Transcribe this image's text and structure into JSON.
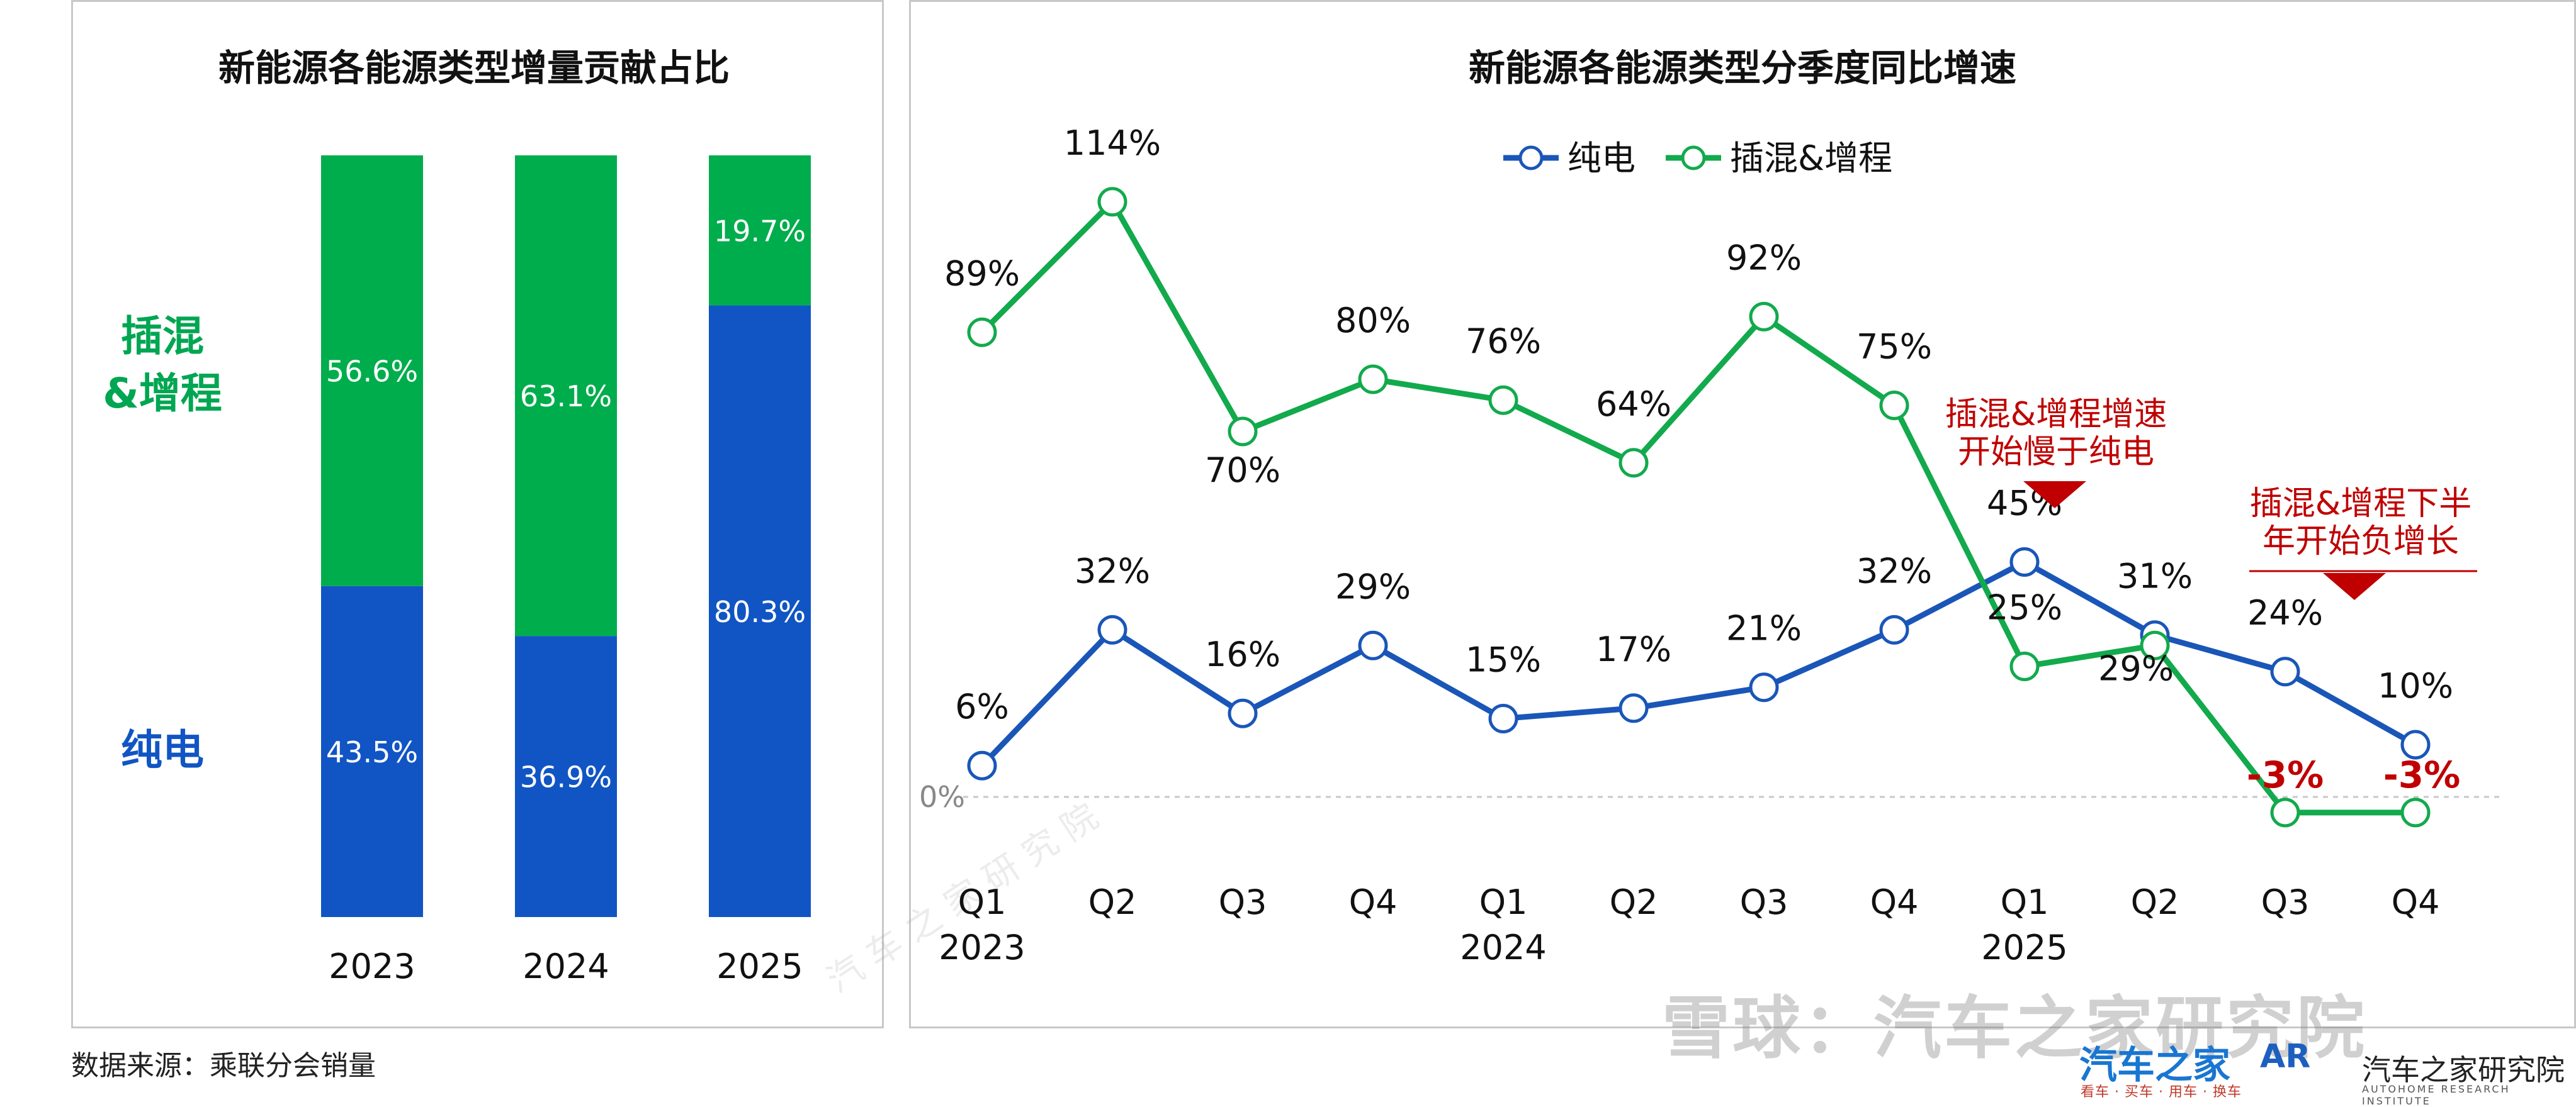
{
  "chart_data": [
    {
      "type": "bar",
      "stacked": true,
      "title": "新能源各能源类型增量贡献占比",
      "categories": [
        "2023",
        "2024",
        "2025"
      ],
      "series": [
        {
          "name": "纯电",
          "values": [
            43.5,
            36.9,
            80.3
          ],
          "labels": [
            "43.5%",
            "36.9%",
            "80.3%"
          ],
          "color": "#1155c4"
        },
        {
          "name": "插混&增程",
          "values": [
            56.6,
            63.1,
            19.7
          ],
          "labels": [
            "56.6%",
            "63.1%",
            "19.7%"
          ],
          "color": "#00ad4c"
        }
      ],
      "series_side_labels": {
        "phev_line1": "插混",
        "phev_line2": "&增程",
        "bev": "纯电"
      },
      "ylim": [
        0,
        100
      ]
    },
    {
      "type": "line",
      "title": "新能源各能源类型分季度同比增速",
      "categories": [
        "Q1",
        "Q2",
        "Q3",
        "Q4",
        "Q1",
        "Q2",
        "Q3",
        "Q4",
        "Q1",
        "Q2",
        "Q3",
        "Q4"
      ],
      "year_labels": [
        {
          "index": 0,
          "label": "2023"
        },
        {
          "index": 4,
          "label": "2024"
        },
        {
          "index": 8,
          "label": "2025"
        }
      ],
      "series": [
        {
          "name": "纯电",
          "values": [
            6,
            32,
            16,
            29,
            15,
            17,
            21,
            32,
            45,
            31,
            24,
            10
          ],
          "labels": [
            "6%",
            "32%",
            "16%",
            "29%",
            "15%",
            "17%",
            "21%",
            "32%",
            "45%",
            "31%",
            "24%",
            "10%"
          ],
          "color": "#1a56b8"
        },
        {
          "name": "插混&增程",
          "values": [
            89,
            114,
            70,
            80,
            76,
            64,
            92,
            75,
            25,
            29,
            -3,
            -3
          ],
          "labels": [
            "89%",
            "114%",
            "70%",
            "80%",
            "76%",
            "64%",
            "92%",
            "75%",
            "25%",
            "29%",
            "-3%",
            "-3%"
          ],
          "color": "#12aa4c"
        }
      ],
      "zero_label": "0%",
      "annotations": [
        {
          "line1": "插混&增程增速",
          "line2": "开始慢于纯电",
          "color": "#c00000"
        },
        {
          "line1": "插混&增程下半",
          "line2": "年开始负增长",
          "color": "#c00000"
        }
      ],
      "ylim": [
        -10,
        125
      ]
    }
  ],
  "footer": {
    "source": "数据来源：乘联分会销量",
    "watermark": "雪球：汽车之家研究院",
    "diag_watermark": "汽 车 之 家 研 究 院",
    "brand1": "汽车之家",
    "brand1_sub": "看车 · 买车 · 用车 · 换车",
    "brand2_logo": "AR",
    "brand2": "汽车之家研究院",
    "brand2_sub": "AUTOHOME RESEARCH INSTITUTE"
  }
}
